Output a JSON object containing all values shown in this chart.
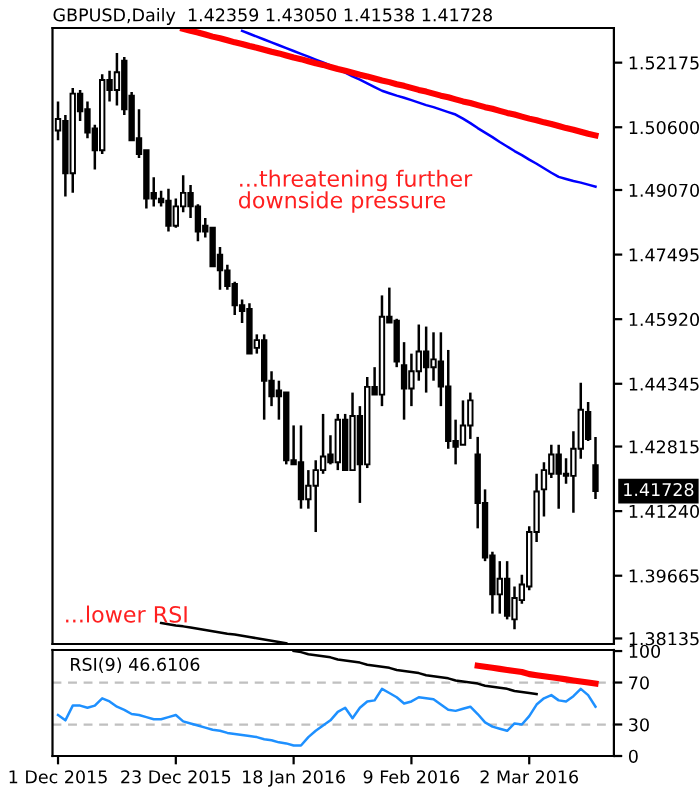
{
  "chart_data": [
    {
      "type": "candlestick",
      "title": "GBPUSD,Daily  1.42359 1.43050 1.41538 1.41728",
      "tick_labels": "y",
      "grid": false,
      "legend": false,
      "categories": [
        null,
        null,
        null,
        null,
        null,
        null,
        null,
        null,
        null,
        null,
        null,
        null,
        null,
        null,
        null,
        null,
        null,
        null,
        null,
        null,
        null,
        null,
        null,
        null,
        null,
        null,
        null,
        null,
        null,
        null,
        null,
        null,
        null,
        null,
        null,
        null,
        null,
        null,
        null,
        null,
        null,
        null,
        null,
        null,
        null,
        null,
        null,
        null,
        null,
        null,
        null,
        null,
        null,
        null,
        null,
        null,
        null,
        null,
        null,
        null,
        null,
        null,
        null,
        null,
        null,
        null,
        null,
        null,
        null,
        null,
        null,
        null,
        null,
        null
      ],
      "ohlc": [
        [
          1.5052,
          1.5123,
          1.5028,
          1.508
        ],
        [
          1.5075,
          1.509,
          1.4891,
          1.4948
        ],
        [
          1.4948,
          1.5156,
          1.49,
          1.5142
        ],
        [
          1.5142,
          1.5151,
          1.5075,
          1.5099
        ],
        [
          1.5104,
          1.5123,
          1.5033,
          1.5047
        ],
        [
          1.5057,
          1.5066,
          1.4957,
          1.5004
        ],
        [
          1.5004,
          1.5189,
          1.4995,
          1.5175
        ],
        [
          1.5175,
          1.5198,
          1.5123,
          1.5151
        ],
        [
          1.5151,
          1.5241,
          1.5113,
          1.5194
        ],
        [
          1.5222,
          1.5231,
          1.509,
          1.5104
        ],
        [
          1.5137,
          1.5146,
          1.5028,
          1.5028
        ],
        [
          1.5033,
          1.5104,
          1.4985,
          1.4995
        ],
        [
          1.5004,
          1.5004,
          1.4862,
          1.4886
        ],
        [
          1.49,
          1.4938,
          1.4867,
          1.4886
        ],
        [
          1.4886,
          1.4905,
          1.4867,
          1.4877
        ],
        [
          1.4881,
          1.491,
          1.4806,
          1.482
        ],
        [
          1.482,
          1.4886,
          1.4815,
          1.4867
        ],
        [
          1.4867,
          1.4943,
          1.4853,
          1.49
        ],
        [
          1.49,
          1.4919,
          1.4839,
          1.4867
        ],
        [
          1.4867,
          1.4872,
          1.4782,
          1.4806
        ],
        [
          1.482,
          1.4839,
          1.4791,
          1.4806
        ],
        [
          1.4815,
          1.4815,
          1.4721,
          1.4721
        ],
        [
          1.4749,
          1.4768,
          1.4664,
          1.4711
        ],
        [
          1.4711,
          1.4725,
          1.4664,
          1.4673
        ],
        [
          1.4678,
          1.4683,
          1.4602,
          1.4626
        ],
        [
          1.4626,
          1.464,
          1.4583,
          1.4612
        ],
        [
          1.4617,
          1.4631,
          1.4508,
          1.4508
        ],
        [
          1.4522,
          1.4555,
          1.4508,
          1.4541
        ],
        [
          1.4541,
          1.4555,
          1.4347,
          1.4442
        ],
        [
          1.4442,
          1.4465,
          1.438,
          1.4404
        ],
        [
          1.4418,
          1.4442,
          1.4347,
          1.4404
        ],
        [
          1.4413,
          1.4413,
          1.4238,
          1.4248
        ],
        [
          1.4248,
          1.4333,
          1.4238,
          1.4238
        ],
        [
          1.4243,
          1.4333,
          1.413,
          1.4153
        ],
        [
          1.4153,
          1.4224,
          1.413,
          1.4186
        ],
        [
          1.4186,
          1.4248,
          1.4073,
          1.4224
        ],
        [
          1.4224,
          1.4361,
          1.4215,
          1.4257
        ],
        [
          1.4262,
          1.4309,
          1.4238,
          1.4243
        ],
        [
          1.4243,
          1.4361,
          1.4224,
          1.4347
        ],
        [
          1.4347,
          1.4361,
          1.4224,
          1.4224
        ],
        [
          1.4224,
          1.4413,
          1.4224,
          1.4356
        ],
        [
          1.4356,
          1.438,
          1.4144,
          1.4238
        ],
        [
          1.4238,
          1.4451,
          1.4229,
          1.4427
        ],
        [
          1.4427,
          1.4475,
          1.4408,
          1.4408
        ],
        [
          1.4408,
          1.465,
          1.438,
          1.4598
        ],
        [
          1.4598,
          1.4669,
          1.4584,
          1.4584
        ],
        [
          1.4588,
          1.4593,
          1.4475,
          1.4489
        ],
        [
          1.448,
          1.4536,
          1.4347,
          1.4423
        ],
        [
          1.4423,
          1.4508,
          1.438,
          1.4465
        ],
        [
          1.4465,
          1.4579,
          1.4442,
          1.4513
        ],
        [
          1.4513,
          1.4574,
          1.4413,
          1.4475
        ],
        [
          1.4475,
          1.456,
          1.4442,
          1.4494
        ],
        [
          1.4489,
          1.456,
          1.438,
          1.4428
        ],
        [
          1.4428,
          1.4517,
          1.4276,
          1.4295
        ],
        [
          1.4295,
          1.4347,
          1.4238,
          1.4281
        ],
        [
          1.4286,
          1.4394,
          1.4286,
          1.4333
        ],
        [
          1.4333,
          1.4413,
          1.43,
          1.4394
        ],
        [
          1.4262,
          1.4305,
          1.4082,
          1.4144
        ],
        [
          1.4144,
          1.4177,
          1.4002,
          1.4011
        ],
        [
          1.4016,
          1.4025,
          1.3874,
          1.3921
        ],
        [
          1.3921,
          1.4002,
          1.3874,
          1.3959
        ],
        [
          1.3959,
          1.4002,
          1.386,
          1.3869
        ],
        [
          1.386,
          1.394,
          1.3836,
          1.3912
        ],
        [
          1.3907,
          1.3969,
          1.3898,
          1.3945
        ],
        [
          1.394,
          1.4087,
          1.3931,
          1.4073
        ],
        [
          1.4073,
          1.4215,
          1.4049,
          1.4172
        ],
        [
          1.4177,
          1.4243,
          1.4111,
          1.4224
        ],
        [
          1.4215,
          1.4286,
          1.4205,
          1.4262
        ],
        [
          1.4262,
          1.4286,
          1.413,
          1.4215
        ],
        [
          1.4215,
          1.4253,
          1.4191,
          1.421
        ],
        [
          1.421,
          1.4319,
          1.412,
          1.4276
        ],
        [
          1.4276,
          1.4437,
          1.4252,
          1.4371
        ],
        [
          1.4366,
          1.439,
          1.4295,
          1.43
        ],
        [
          1.42359,
          1.4305,
          1.41538,
          1.41728
        ]
      ],
      "series": [
        {
          "type": "line",
          "color": "#0000ff",
          "values": [
            null,
            null,
            null,
            null,
            null,
            null,
            null,
            null,
            null,
            null,
            null,
            null,
            null,
            null,
            null,
            null,
            null,
            null,
            null,
            null,
            null,
            null,
            null,
            null,
            null,
            1.5295,
            1.5288,
            1.5281,
            1.5274,
            1.5267,
            1.526,
            1.5253,
            1.5246,
            1.5239,
            1.5232,
            1.5225,
            1.5218,
            1.5211,
            1.5202,
            1.5193,
            1.5184,
            1.5176,
            1.5167,
            1.5158,
            1.5149,
            1.5143,
            1.5137,
            1.5132,
            1.5126,
            1.512,
            1.5114,
            1.5109,
            1.5103,
            1.5097,
            1.5091,
            1.5081,
            1.507,
            1.5058,
            1.5047,
            1.5036,
            1.5024,
            1.5013,
            1.5002,
            1.4992,
            1.4981,
            1.4971,
            1.496,
            1.4949,
            1.4939,
            1.4934,
            1.4929,
            1.4925,
            1.492,
            1.4915
          ]
        },
        {
          "type": "line",
          "color": "#ff0000",
          "values": [
            null,
            null,
            null,
            null,
            null,
            null,
            null,
            null,
            null,
            null,
            null,
            null,
            null,
            null,
            null,
            null,
            null,
            1.53,
            1.5295,
            1.5291,
            1.5286,
            1.5281,
            1.5277,
            1.5272,
            1.5267,
            1.5263,
            1.5258,
            1.5254,
            1.5249,
            1.5244,
            1.524,
            1.5235,
            1.523,
            1.5226,
            1.5221,
            1.5216,
            1.5212,
            1.5207,
            1.5202,
            1.5198,
            1.5193,
            1.5188,
            1.5184,
            1.5179,
            1.5174,
            1.517,
            1.5165,
            1.5161,
            1.5156,
            1.5151,
            1.5147,
            1.5142,
            1.5137,
            1.5133,
            1.5128,
            1.5123,
            1.5119,
            1.5114,
            1.5109,
            1.5105,
            1.51,
            1.5095,
            1.5091,
            1.5086,
            1.5081,
            1.5077,
            1.5072,
            1.5068,
            1.5063,
            1.5058,
            1.5054,
            1.5049,
            1.5044,
            1.504
          ]
        },
        {
          "type": "line",
          "color": "#000000",
          "values": [
            null,
            null,
            null,
            null,
            null,
            null,
            null,
            null,
            null,
            null,
            null,
            null,
            null,
            null,
            1.3851,
            1.3848,
            1.3845,
            1.3843,
            1.384,
            1.3837,
            1.3834,
            1.3831,
            1.3828,
            1.3825,
            1.3823,
            1.382,
            1.3817,
            1.3814,
            1.3811,
            1.3808,
            1.3805,
            1.3802,
            null,
            null,
            null,
            null,
            null,
            null,
            null,
            null,
            null,
            null,
            null,
            null,
            null,
            null,
            null,
            null,
            null,
            null,
            null,
            null,
            null,
            null,
            null,
            null,
            null,
            null,
            null,
            null,
            null,
            null,
            null,
            null,
            null,
            null,
            null,
            null,
            null,
            null,
            null,
            null,
            null,
            null
          ]
        }
      ],
      "ylim": [
        1.38,
        1.5302
      ],
      "yticks": [
        {
          "value": 1.52175,
          "label": "1.52175"
        },
        {
          "value": 1.506,
          "label": "1.50600"
        },
        {
          "value": 1.4907,
          "label": "1.49070"
        },
        {
          "value": 1.47495,
          "label": "1.47495"
        },
        {
          "value": 1.4592,
          "label": "1.45920"
        },
        {
          "value": 1.44345,
          "label": "1.44345"
        },
        {
          "value": 1.42815,
          "label": "1.42815"
        },
        {
          "value": 1.4124,
          "label": "1.41240"
        },
        {
          "value": 1.39665,
          "label": "1.39665"
        },
        {
          "value": 1.38135,
          "label": "1.38135"
        }
      ],
      "annotations": [
        "...threatening further\ndownside pressure",
        "...lower RSI",
        "1.41728"
      ]
    },
    {
      "type": "line",
      "title": "RSI(9) 46.6106",
      "grid": false,
      "legend": false,
      "categories": [
        "1 Dec 2015",
        null,
        null,
        null,
        null,
        null,
        null,
        null,
        null,
        null,
        null,
        null,
        null,
        null,
        null,
        null,
        "23 Dec 2015",
        null,
        null,
        null,
        null,
        null,
        null,
        null,
        null,
        null,
        null,
        null,
        null,
        null,
        null,
        null,
        "18 Jan 2016",
        null,
        null,
        null,
        null,
        null,
        null,
        null,
        null,
        null,
        null,
        null,
        null,
        null,
        null,
        null,
        "9 Feb 2016",
        null,
        null,
        null,
        null,
        null,
        null,
        null,
        null,
        null,
        null,
        null,
        null,
        null,
        null,
        null,
        "2 Mar 2016",
        null,
        null,
        null,
        null,
        null,
        null,
        null,
        null,
        null
      ],
      "series": [
        {
          "type": "line",
          "color": "#1e90ff",
          "values": [
            39,
            34,
            48,
            48,
            46,
            48,
            55,
            52,
            47,
            44,
            40,
            39,
            37,
            35,
            35,
            37,
            39,
            33,
            31,
            29,
            27,
            25,
            24,
            22,
            21,
            20,
            19,
            18,
            16,
            15,
            13,
            12,
            10,
            10,
            18,
            24,
            29,
            34,
            42,
            46,
            36,
            46,
            52,
            53,
            64,
            60,
            56,
            50,
            52,
            56,
            55,
            54,
            49,
            44,
            43,
            45,
            47,
            40,
            32,
            28,
            26,
            24,
            31,
            30,
            38,
            49,
            55,
            58,
            53,
            52,
            57,
            64,
            58,
            47
          ]
        },
        {
          "type": "line",
          "color": "#ff0000",
          "values": [
            null,
            null,
            null,
            null,
            null,
            null,
            null,
            null,
            null,
            null,
            null,
            null,
            null,
            null,
            null,
            null,
            null,
            null,
            null,
            null,
            null,
            null,
            null,
            null,
            null,
            null,
            null,
            null,
            null,
            null,
            null,
            null,
            null,
            null,
            null,
            null,
            null,
            null,
            null,
            null,
            null,
            null,
            null,
            null,
            null,
            null,
            null,
            null,
            null,
            null,
            null,
            null,
            null,
            null,
            null,
            null,
            null,
            86,
            85,
            84,
            83,
            82,
            81,
            80,
            78,
            77,
            76,
            75,
            74,
            73,
            72,
            71,
            70,
            69
          ]
        },
        {
          "type": "line",
          "color": "#000000",
          "values": [
            null,
            null,
            null,
            null,
            null,
            null,
            null,
            null,
            null,
            null,
            null,
            null,
            null,
            null,
            null,
            null,
            null,
            null,
            null,
            null,
            null,
            null,
            null,
            null,
            null,
            null,
            null,
            null,
            null,
            null,
            null,
            null,
            100,
            99,
            97,
            96,
            95,
            94,
            92,
            91,
            90,
            89,
            87,
            86,
            85,
            84,
            82,
            81,
            80,
            79,
            77,
            76,
            75,
            74,
            72,
            71,
            70,
            69,
            67,
            66,
            65,
            64,
            62,
            61,
            60,
            59,
            null,
            null,
            null,
            null,
            null,
            null,
            null,
            null
          ]
        }
      ],
      "ylim": [
        0,
        101
      ],
      "yticks": [
        100,
        70,
        30,
        0
      ],
      "ref_lines": [
        {
          "axis": "y",
          "value": 70,
          "color": "#c0c0c0",
          "line_style": "dashed"
        },
        {
          "axis": "y",
          "value": 30,
          "color": "#c0c0c0",
          "line_style": "dashed"
        }
      ]
    }
  ]
}
